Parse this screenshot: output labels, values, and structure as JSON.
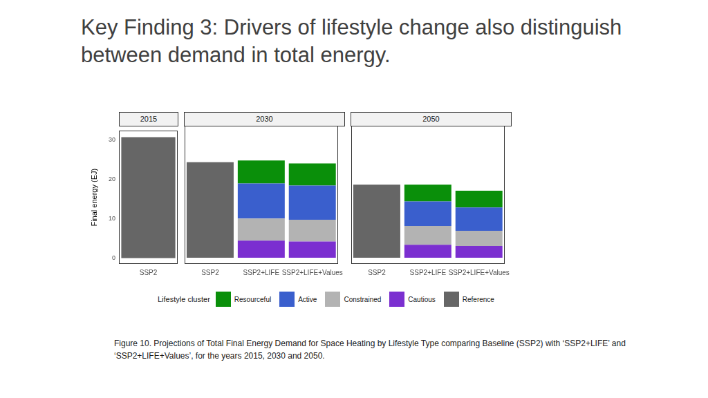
{
  "page": {
    "title": "Key Finding 3: Drivers of lifestyle change also distinguish between demand in total energy.",
    "legend_title": "Lifestyle cluster",
    "caption": "Figure 10. Projections of Total Final Energy Demand for Space Heating by Lifestyle Type comparing Baseline (SSP2) with ‘SSP2+LIFE’ and ‘SSP2+LIFE+Values’, for the years 2015, 2030 and 2050."
  },
  "chart_data": [
    {
      "type": "bar",
      "title": "2015",
      "stacked": true,
      "grid": false,
      "y_label": "Final energy (EJ)",
      "categories": [
        "SSP2"
      ],
      "ylim": [
        -1.5,
        32.3
      ],
      "yticks": [
        0,
        10,
        20,
        30
      ],
      "series": [
        {
          "name": "Resourceful",
          "color": "#0a8f0a",
          "values": [
            null
          ]
        },
        {
          "name": "Active",
          "color": "#3a5fcd",
          "values": [
            null
          ]
        },
        {
          "name": "Constrained",
          "color": "#b3b3b3",
          "values": [
            null
          ]
        },
        {
          "name": "Cautious",
          "color": "#7b2fd0",
          "values": [
            null
          ]
        },
        {
          "name": "Reference",
          "color": "#666666",
          "values": [
            30.7
          ]
        }
      ]
    },
    {
      "type": "bar",
      "title": "2030",
      "stacked": true,
      "grid": false,
      "tick_labels": "x",
      "categories": [
        "SSP2",
        "SSP2+LIFE",
        "SSP2+LIFE+Values"
      ],
      "ylim": [
        -1.5,
        32.3
      ],
      "yticks": [
        0,
        10,
        20,
        30
      ],
      "series": [
        {
          "name": "Resourceful",
          "color": "#0a8f0a",
          "values": [
            null,
            5.6,
            5.4
          ]
        },
        {
          "name": "Active",
          "color": "#3a5fcd",
          "values": [
            null,
            8.6,
            8.4
          ]
        },
        {
          "name": "Constrained",
          "color": "#b3b3b3",
          "values": [
            null,
            5.4,
            5.3
          ]
        },
        {
          "name": "Cautious",
          "color": "#7b2fd0",
          "values": [
            null,
            4.2,
            4.0
          ]
        },
        {
          "name": "Reference",
          "color": "#666666",
          "values": [
            23.4,
            null,
            null
          ]
        }
      ]
    },
    {
      "type": "bar",
      "title": "2050",
      "stacked": true,
      "grid": false,
      "tick_labels": "x",
      "legend": "bottom",
      "categories": [
        "SSP2",
        "SSP2+LIFE",
        "SSP2+LIFE+Values"
      ],
      "ylim": [
        -1.5,
        32.3
      ],
      "yticks": [
        0,
        10,
        20,
        30
      ],
      "series": [
        {
          "name": "Resourceful",
          "color": "#0a8f0a",
          "values": [
            null,
            4.1,
            4.1
          ]
        },
        {
          "name": "Active",
          "color": "#3a5fcd",
          "values": [
            null,
            6.0,
            5.7
          ]
        },
        {
          "name": "Constrained",
          "color": "#b3b3b3",
          "values": [
            null,
            4.6,
            3.7
          ]
        },
        {
          "name": "Cautious",
          "color": "#7b2fd0",
          "values": [
            null,
            3.2,
            2.9
          ]
        },
        {
          "name": "Reference",
          "color": "#666666",
          "values": [
            17.9,
            null,
            null
          ]
        }
      ]
    }
  ]
}
